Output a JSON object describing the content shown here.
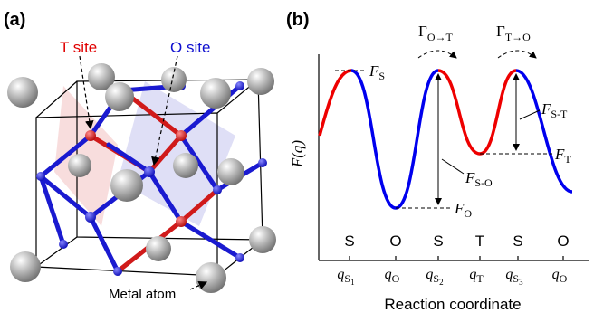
{
  "panel_a": {
    "label": "(a)",
    "t_site": "T site",
    "o_site": "O site",
    "metal_atom": "Metal atom"
  },
  "panel_b": {
    "label": "(b)",
    "y_label": "F(q)",
    "x_label": "Reaction coordinate",
    "rates": [
      {
        "main": "Γ",
        "sub": "O→T"
      },
      {
        "main": "Γ",
        "sub": "T→O"
      }
    ],
    "energies": {
      "s": {
        "main": "F",
        "sub": "S"
      },
      "o": {
        "main": "F",
        "sub": "O"
      },
      "t": {
        "main": "F",
        "sub": "T"
      },
      "s_o": {
        "main": "F",
        "sub": "S-O"
      },
      "s_t": {
        "main": "F",
        "sub": "S-T"
      }
    },
    "states": [
      "S",
      "O",
      "S",
      "T",
      "S",
      "O"
    ],
    "coords": [
      {
        "main": "q",
        "sub": "S",
        "index": "1"
      },
      {
        "main": "q",
        "sub": "O"
      },
      {
        "main": "q",
        "sub": "S",
        "index": "2"
      },
      {
        "main": "q",
        "sub": "T"
      },
      {
        "main": "q",
        "sub": "S",
        "index": "3"
      },
      {
        "main": "q",
        "sub": "O"
      }
    ]
  }
}
